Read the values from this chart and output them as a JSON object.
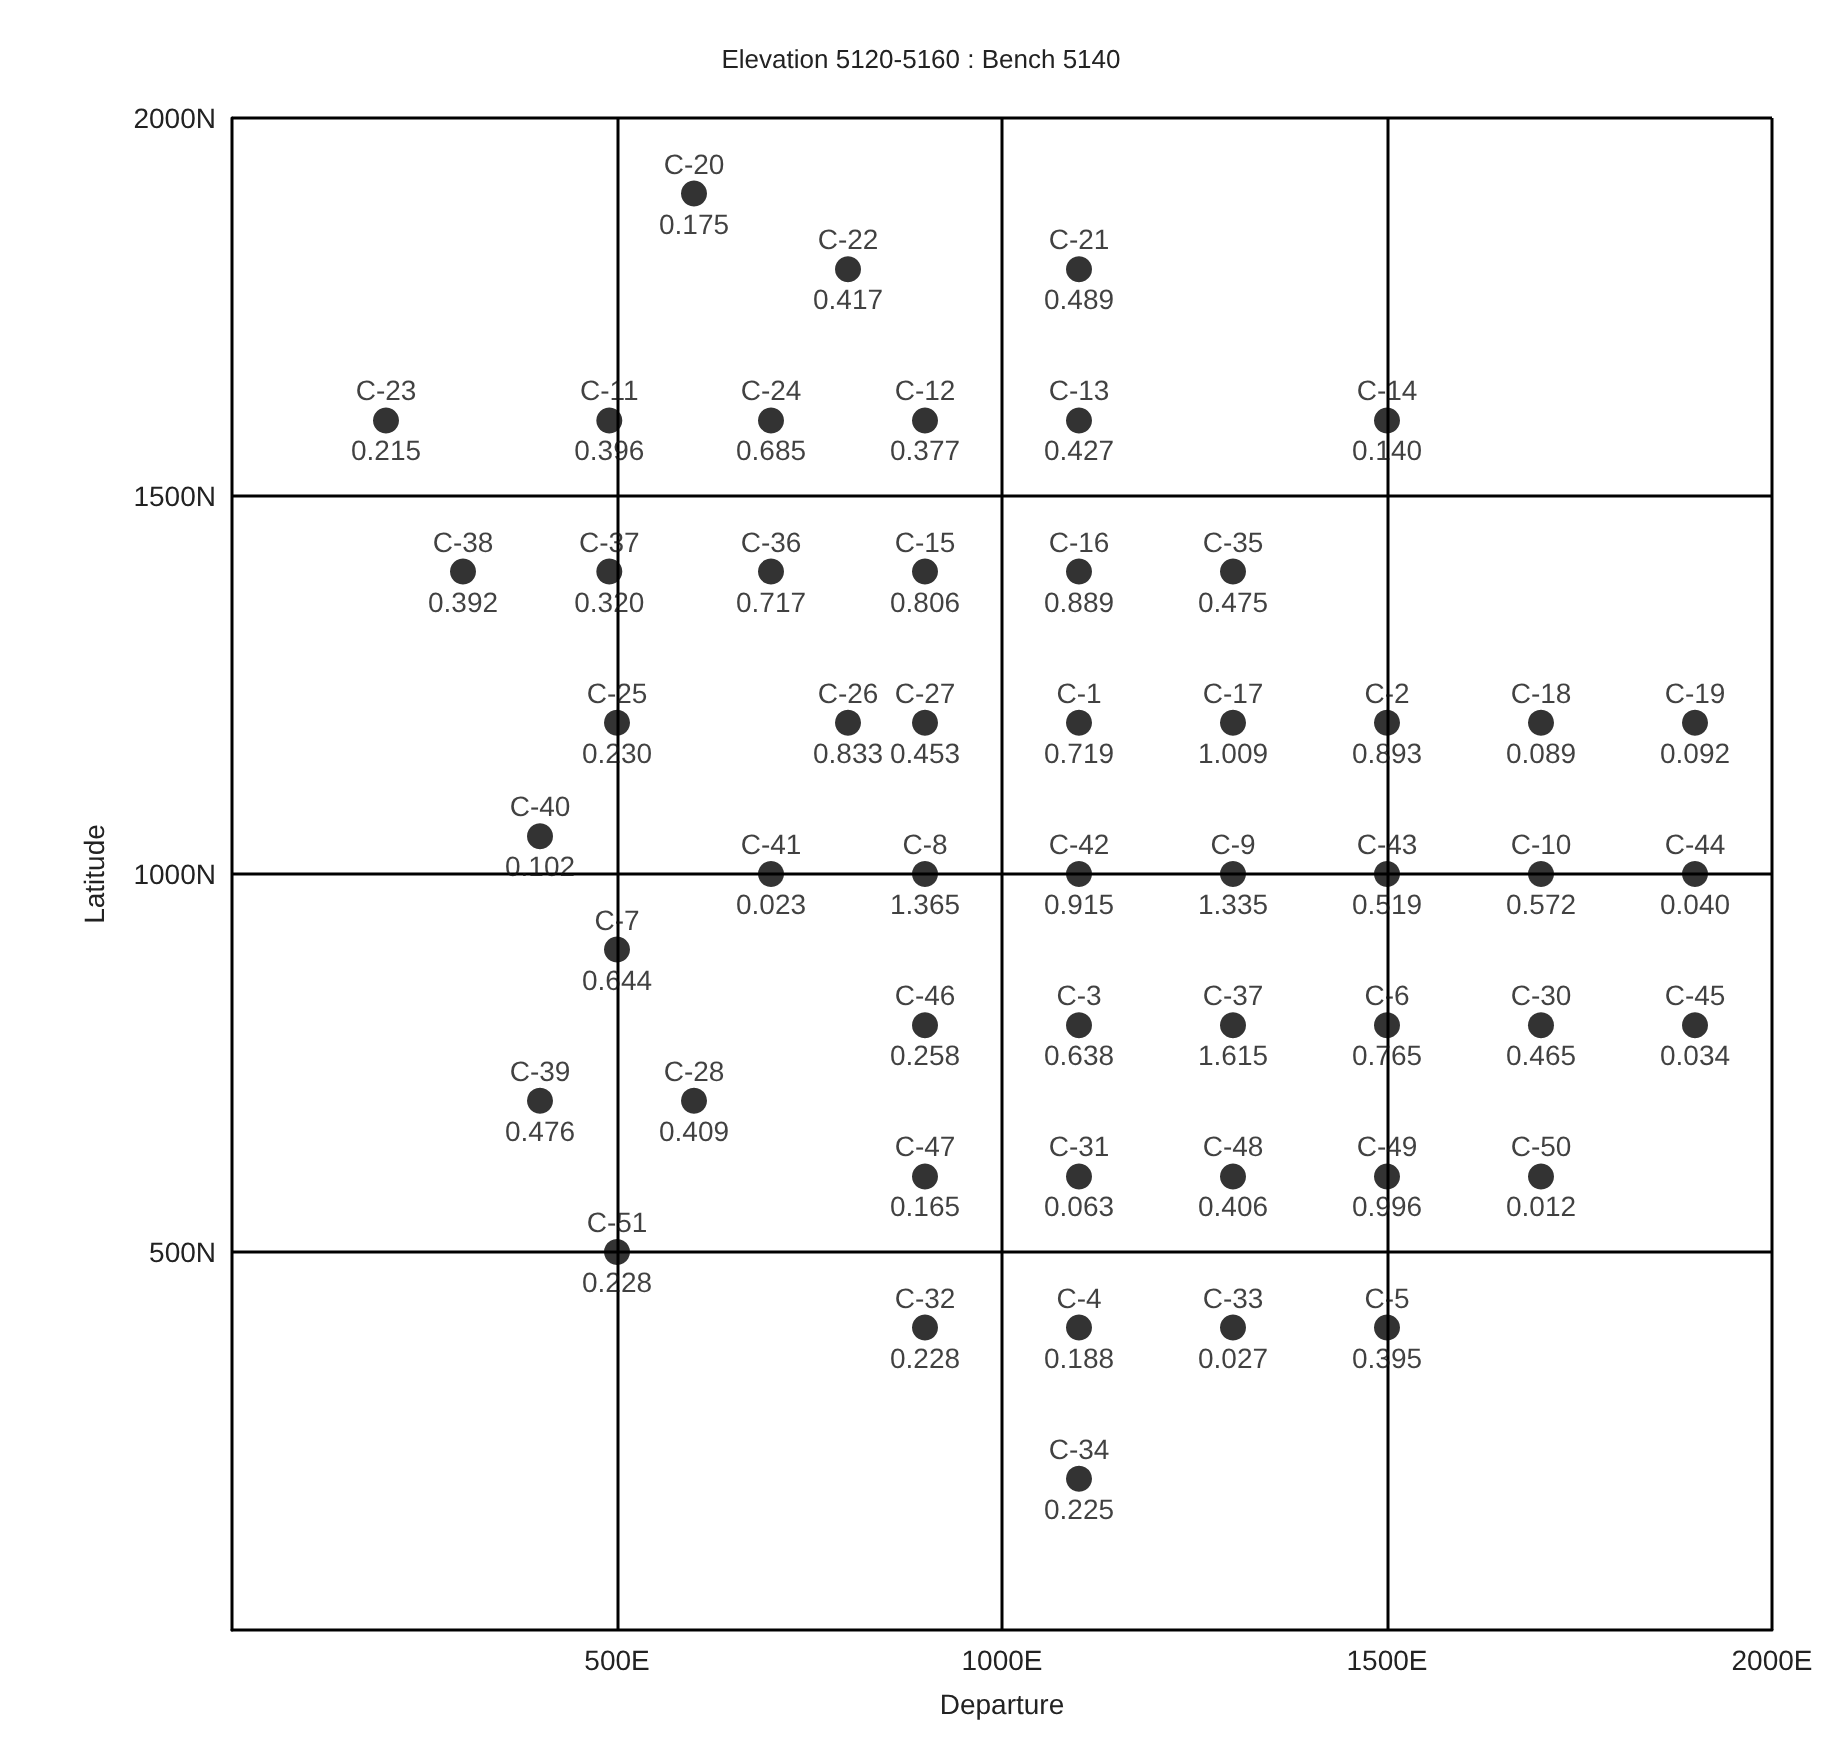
{
  "chart_data": {
    "type": "scatter",
    "title": "Elevation 5120-5160 : Bench 5140",
    "xlabel": "Departure",
    "ylabel": "Latitude",
    "x": [
      600,
      800,
      1100,
      200,
      490,
      700,
      900,
      1100,
      1500,
      300,
      490,
      700,
      900,
      1100,
      1300,
      500,
      800,
      900,
      1100,
      1300,
      1500,
      1700,
      1900,
      400,
      700,
      900,
      1100,
      1300,
      1500,
      1700,
      1900,
      500,
      900,
      1100,
      1300,
      1500,
      1700,
      1900,
      400,
      600,
      900,
      1100,
      1300,
      1500,
      1700,
      500,
      900,
      1100,
      1300,
      1500,
      1100
    ],
    "series": [
      {
        "color": "#000000",
        "values": [
          1900,
          1800,
          1800,
          1600,
          1600,
          1600,
          1600,
          1600,
          1600,
          1400,
          1400,
          1400,
          1400,
          1400,
          1400,
          1200,
          1200,
          1200,
          1200,
          1200,
          1200,
          1200,
          1200,
          1050,
          1000,
          1000,
          1000,
          1000,
          1000,
          1000,
          1000,
          900,
          800,
          800,
          800,
          800,
          800,
          800,
          700,
          700,
          600,
          600,
          600,
          600,
          600,
          500,
          400,
          400,
          400,
          400,
          200
        ],
        "value_labels": [
          "C-20\n0.175",
          "C-22\n0.417",
          "C-21\n0.489",
          "C-23\n0.215",
          "C-11\n0.396",
          "C-24\n0.685",
          "C-12\n0.377",
          "C-13\n0.427",
          "C-14\n0.140",
          "C-38\n0.392",
          "C-37\n0.320",
          "C-36\n0.717",
          "C-15\n0.806",
          "C-16\n0.889",
          "C-35\n0.475",
          "C-25\n0.230",
          "C-26\n0.833",
          "C-27\n0.453",
          "C-1\n0.719",
          "C-17\n1.009",
          "C-2\n0.893",
          "C-18\n0.089",
          "C-19\n0.092",
          "C-40\n0.102",
          "C-41\n0.023",
          "C-8\n1.365",
          "C-42\n0.915",
          "C-9\n1.335",
          "C-43\n0.519",
          "C-10\n0.572",
          "C-44\n0.040",
          "C-7\n0.644",
          "C-46\n0.258",
          "C-3\n0.638",
          "C-37\n1.615",
          "C-6\n0.765",
          "C-30\n0.465",
          "C-45\n0.034",
          "C-39\n0.476",
          "C-28\n0.409",
          "C-47\n0.165",
          "C-31\n0.063",
          "C-48\n0.406",
          "C-49\n0.996",
          "C-50\n0.012",
          "C-51\n0.228",
          "C-32\n0.228",
          "C-4\n0.188",
          "C-33\n0.027",
          "C-5\n0.395",
          "C-34\n0.225"
        ]
      }
    ],
    "xlim": [
      0,
      2000
    ],
    "ylim": [
      0,
      2000
    ],
    "xticks": [
      {
        "value": 500,
        "label": "500E"
      },
      {
        "value": 1000,
        "label": "1000E"
      },
      {
        "value": 1500,
        "label": "1500E"
      },
      {
        "value": 2000,
        "label": "2000E"
      }
    ],
    "yticks": [
      {
        "value": 500,
        "label": "500N"
      },
      {
        "value": 1000,
        "label": "1000N"
      },
      {
        "value": 1500,
        "label": "1500N"
      },
      {
        "value": 2000,
        "label": "2000N"
      }
    ],
    "grid": true,
    "marker": "circle"
  }
}
